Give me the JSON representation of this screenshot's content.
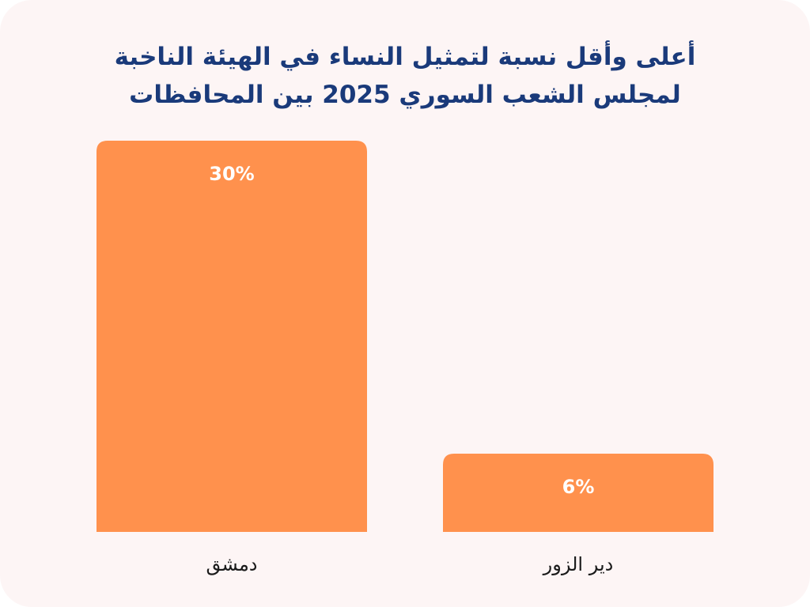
{
  "colors": {
    "card_background": "#fdf5f5",
    "bar": "#ff914d",
    "title": "#1a3a7a",
    "value_label": "#ffffff",
    "category_label": "#1a1a1a"
  },
  "chart_data": {
    "type": "bar",
    "title": "أعلى وأقل نسبة لتمثيل النساء في الهيئة الناخبة لمجلس الشعب السوري 2025 بين المحافظات",
    "xlabel": "",
    "ylabel": "",
    "categories": [
      "دمشق",
      "دير الزور"
    ],
    "values": [
      30,
      6
    ],
    "value_labels": [
      "30%",
      "6%"
    ],
    "unit": "%",
    "ylim": [
      0,
      30
    ],
    "grid": false,
    "legend": "none",
    "axes_visible": false
  }
}
